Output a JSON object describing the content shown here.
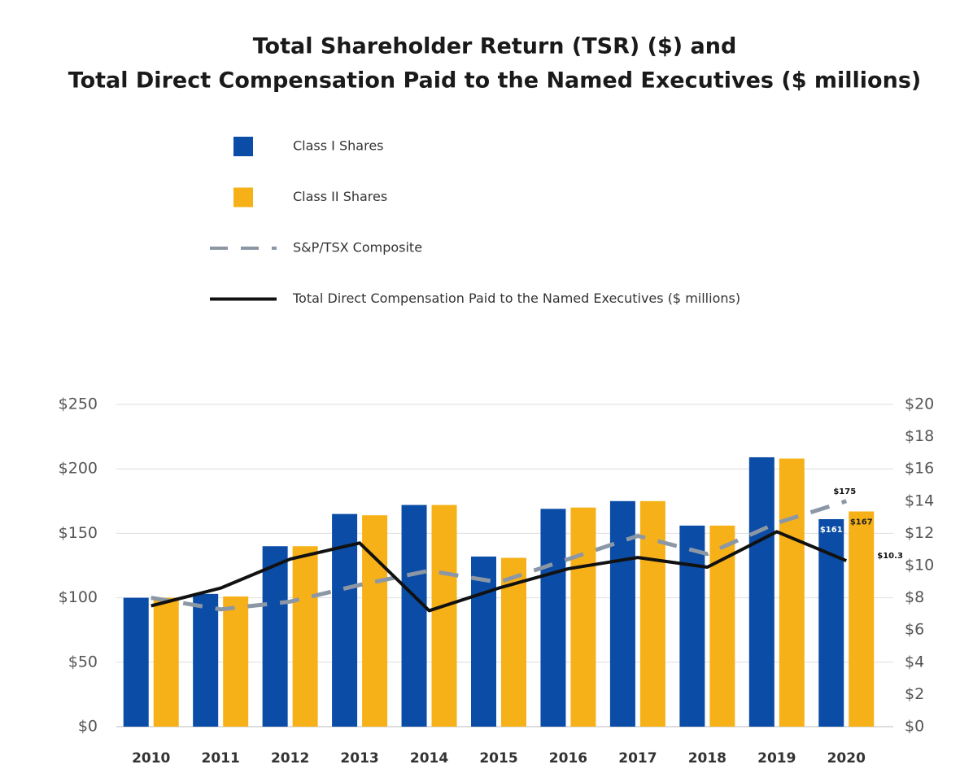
{
  "chart_data": {
    "type": "bar",
    "title": [
      "Total Shareholder Return (TSR) ($) and",
      "Total Direct Compensation Paid to the Named Executives ($ millions)"
    ],
    "categories": [
      "2010",
      "2011",
      "2012",
      "2013",
      "2014",
      "2015",
      "2016",
      "2017",
      "2018",
      "2019",
      "2020"
    ],
    "series": [
      {
        "name": "Class I Shares",
        "type": "bar",
        "color": "#0b4ca6",
        "values": [
          100,
          103,
          140,
          165,
          172,
          132,
          169,
          175,
          156,
          209,
          161
        ],
        "value_labels": [
          null,
          null,
          null,
          null,
          null,
          null,
          null,
          null,
          null,
          null,
          "$161"
        ]
      },
      {
        "name": "Class II Shares",
        "type": "bar",
        "color": "#f7b118",
        "values": [
          100,
          101,
          140,
          164,
          172,
          131,
          170,
          175,
          156,
          208,
          167
        ],
        "value_labels": [
          null,
          null,
          null,
          null,
          null,
          null,
          null,
          null,
          null,
          null,
          "$167"
        ]
      },
      {
        "name": "S&P/TSX Composite",
        "type": "line",
        "dashed": true,
        "color": "#8c97a6",
        "values": [
          100,
          91,
          97,
          110,
          121,
          112,
          130,
          148,
          134,
          158,
          175
        ],
        "value_labels": [
          null,
          null,
          null,
          null,
          null,
          null,
          null,
          null,
          null,
          null,
          "$175"
        ]
      },
      {
        "name": "Total Direct Compensation Paid to the Named Executives ($ millions)",
        "type": "line",
        "axis": "y2",
        "color": "#111111",
        "values": [
          7.5,
          8.6,
          10.4,
          11.4,
          7.2,
          8.6,
          9.8,
          10.5,
          9.9,
          12.1,
          10.3
        ],
        "value_labels": [
          null,
          null,
          null,
          null,
          null,
          null,
          null,
          null,
          null,
          null,
          "$10.3"
        ]
      }
    ],
    "ylim": [
      0,
      250
    ],
    "yticks": [
      {
        "value": 0,
        "label": "$0"
      },
      {
        "value": 50,
        "label": "$50"
      },
      {
        "value": 100,
        "label": "$100"
      },
      {
        "value": 150,
        "label": "$150"
      },
      {
        "value": 200,
        "label": "$200"
      },
      {
        "value": 250,
        "label": "$250"
      }
    ],
    "y2lim": [
      0,
      20
    ],
    "y2ticks": [
      {
        "value": 0,
        "label": "$0"
      },
      {
        "value": 2,
        "label": "$2"
      },
      {
        "value": 4,
        "label": "$4"
      },
      {
        "value": 6,
        "label": "$6"
      },
      {
        "value": 8,
        "label": "$8"
      },
      {
        "value": 10,
        "label": "$10"
      },
      {
        "value": 12,
        "label": "$12"
      },
      {
        "value": 14,
        "label": "$14"
      },
      {
        "value": 16,
        "label": "$16"
      },
      {
        "value": 18,
        "label": "$18"
      },
      {
        "value": 20,
        "label": "$20"
      }
    ],
    "grid": true,
    "legend": "top"
  }
}
